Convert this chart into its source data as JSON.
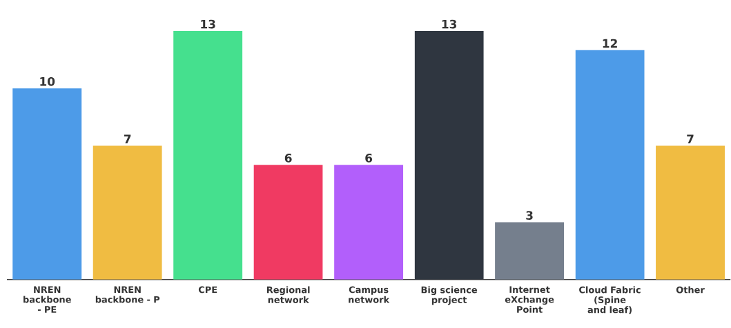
{
  "chart_data": {
    "type": "bar",
    "categories": [
      "NREN backbone - PE",
      "NREN backbone - P",
      "CPE",
      "Regional network",
      "Campus network",
      "Big science project",
      "Internet eXchange Point",
      "Cloud Fabric (Spine and leaf)",
      "Other"
    ],
    "values": [
      10,
      7,
      13,
      6,
      6,
      13,
      3,
      12,
      7
    ],
    "colors": [
      "#4d9be8",
      "#f0bc42",
      "#45e08e",
      "#f03a62",
      "#b25ffb",
      "#2f3640",
      "#757f8d",
      "#4d9be8",
      "#f0bc42"
    ],
    "data_labels": true
  }
}
